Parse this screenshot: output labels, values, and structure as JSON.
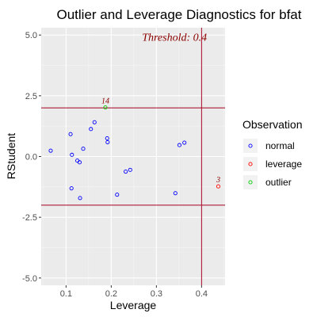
{
  "chart_data": {
    "type": "scatter",
    "title": "Outlier and Leverage Diagnostics for bfat",
    "xlabel": "Leverage",
    "ylabel": "RStudent",
    "xlim": [
      0.045,
      0.452
    ],
    "ylim": [
      -5.3,
      5.3
    ],
    "x_ticks": [
      0.1,
      0.2,
      0.3,
      0.4
    ],
    "x_tick_labels": [
      "0.1",
      "0.2",
      "0.3",
      "0.4"
    ],
    "y_ticks": [
      -5,
      -2.5,
      0,
      2.5,
      5
    ],
    "y_tick_labels": [
      "-5.0",
      "-2.5",
      "0.0",
      "2.5",
      "5.0"
    ],
    "grid": true,
    "reference_lines": {
      "horizontal": [
        2,
        -2
      ],
      "vertical": [
        0.4
      ],
      "color": "#a50021"
    },
    "annotation": {
      "text": "Threshold: 0.4",
      "x": 0.34,
      "y": 4.9
    },
    "legend": {
      "title": "Observation",
      "position": "right",
      "entries": [
        {
          "label": "normal",
          "color": "#0000ff"
        },
        {
          "label": "leverage",
          "color": "#ff0000"
        },
        {
          "label": "outlier",
          "color": "#00cc00"
        }
      ]
    },
    "series": [
      {
        "name": "normal",
        "color": "#0000ff",
        "points": [
          {
            "x": 0.066,
            "y": 0.24
          },
          {
            "x": 0.11,
            "y": 0.92
          },
          {
            "x": 0.113,
            "y": 0.07
          },
          {
            "x": 0.125,
            "y": -0.17
          },
          {
            "x": 0.13,
            "y": -0.24
          },
          {
            "x": 0.138,
            "y": 0.32
          },
          {
            "x": 0.155,
            "y": 1.13
          },
          {
            "x": 0.163,
            "y": 1.41
          },
          {
            "x": 0.191,
            "y": 0.75
          },
          {
            "x": 0.192,
            "y": 0.59
          },
          {
            "x": 0.112,
            "y": -1.31
          },
          {
            "x": 0.131,
            "y": -1.71
          },
          {
            "x": 0.213,
            "y": -1.57
          },
          {
            "x": 0.232,
            "y": -0.62
          },
          {
            "x": 0.242,
            "y": -0.55
          },
          {
            "x": 0.342,
            "y": -1.51
          },
          {
            "x": 0.351,
            "y": 0.47
          },
          {
            "x": 0.362,
            "y": 0.57
          }
        ]
      },
      {
        "name": "leverage",
        "color": "#ff0000",
        "points": [
          {
            "x": 0.437,
            "y": -1.23,
            "label": "3"
          }
        ]
      },
      {
        "name": "outlier",
        "color": "#00cc00",
        "points": [
          {
            "x": 0.187,
            "y": 2.02,
            "label": "14"
          }
        ]
      }
    ]
  }
}
